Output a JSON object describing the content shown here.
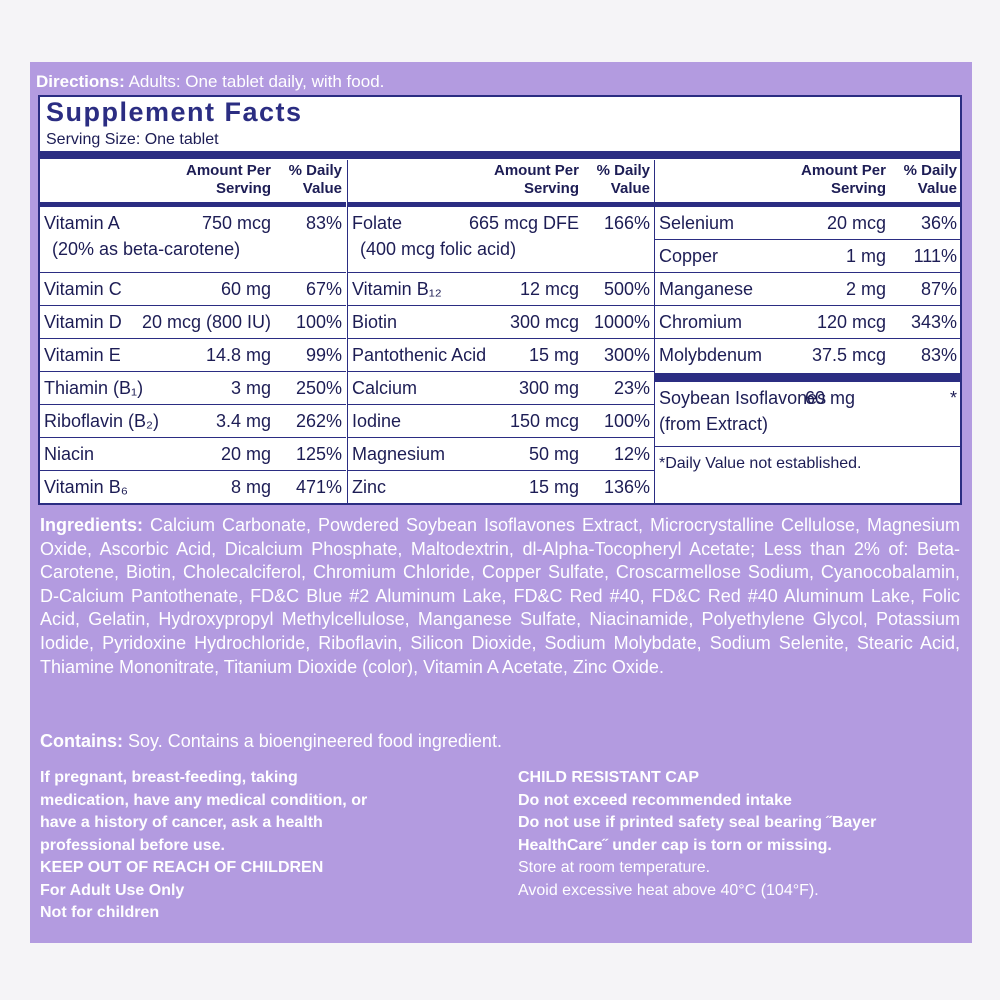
{
  "directions": {
    "label": "Directions:",
    "text": "Adults: One tablet daily, with food."
  },
  "facts": {
    "title": "Supplement Facts",
    "serving": "Serving Size: One tablet",
    "columns": [
      {
        "amount_header": "Amount Per Serving",
        "dv_header": "% Daily Value",
        "rows": [
          {
            "name": "Vitamin A",
            "amount": "750 mcg",
            "dv": "83%",
            "note": "(20% as beta-carotene)"
          },
          {
            "name": "Vitamin C",
            "amount": "60 mg",
            "dv": "67%"
          },
          {
            "name": "Vitamin D",
            "amount": "20 mcg (800 IU)",
            "dv": "100%"
          },
          {
            "name": "Vitamin E",
            "amount": "14.8 mg",
            "dv": "99%"
          },
          {
            "name": "Thiamin (B₁)",
            "amount": "3 mg",
            "dv": "250%"
          },
          {
            "name": "Riboflavin (B₂)",
            "amount": "3.4 mg",
            "dv": "262%"
          },
          {
            "name": "Niacin",
            "amount": "20 mg",
            "dv": "125%"
          },
          {
            "name": "Vitamin B₆",
            "amount": "8 mg",
            "dv": "471%"
          }
        ]
      },
      {
        "amount_header": "Amount Per Serving",
        "dv_header": "% Daily Value",
        "rows": [
          {
            "name": "Folate",
            "amount": "665 mcg DFE",
            "dv": "166%",
            "note": "(400 mcg folic acid)"
          },
          {
            "name": "Vitamin B₁₂",
            "amount": "12 mcg",
            "dv": "500%"
          },
          {
            "name": "Biotin",
            "amount": "300 mcg",
            "dv": "1000%"
          },
          {
            "name": "Pantothenic Acid",
            "amount": "15 mg",
            "dv": "300%"
          },
          {
            "name": "Calcium",
            "amount": "300 mg",
            "dv": "23%"
          },
          {
            "name": "Iodine",
            "amount": "150 mcg",
            "dv": "100%"
          },
          {
            "name": "Magnesium",
            "amount": "50 mg",
            "dv": "12%"
          },
          {
            "name": "Zinc",
            "amount": "15 mg",
            "dv": "136%"
          }
        ]
      },
      {
        "amount_header": "Amount Per Serving",
        "dv_header": "% Daily Value",
        "rows": [
          {
            "name": "Selenium",
            "amount": "20 mcg",
            "dv": "36%"
          },
          {
            "name": "Copper",
            "amount": "1 mg",
            "dv": "111%"
          },
          {
            "name": "Manganese",
            "amount": "2 mg",
            "dv": "87%"
          },
          {
            "name": "Chromium",
            "amount": "120 mcg",
            "dv": "343%"
          },
          {
            "name": "Molybdenum",
            "amount": "37.5 mcg",
            "dv": "83%"
          }
        ],
        "other": {
          "name": "Soybean Isoflavones",
          "amount": "60 mg",
          "dv": "*",
          "note": "(from Extract)"
        },
        "footnote": "*Daily Value not established."
      }
    ]
  },
  "ingredients": {
    "label": "Ingredients:",
    "text": "Calcium Carbonate, Powdered Soybean Isoflavones Extract, Microcrystalline Cellulose, Magnesium Oxide, Ascorbic Acid, Dicalcium Phosphate, Maltodextrin, dl-Alpha-Tocopheryl Acetate; Less than 2% of: Beta-Carotene, Biotin, Cholecalciferol, Chromium Chloride, Copper Sulfate, Croscarmellose Sodium, Cyanocobalamin, D-Calcium Pantothenate, FD&C Blue #2 Aluminum Lake, FD&C Red #40, FD&C Red #40 Aluminum Lake, Folic Acid, Gelatin, Hydroxypropyl Methylcellulose, Manganese Sulfate, Niacinamide, Polyethylene Glycol, Potassium Iodide, Pyridoxine Hydrochloride, Riboflavin, Silicon Dioxide, Sodium Molybdate, Sodium Selenite, Stearic Acid, Thiamine Mononitrate, Titanium Dioxide (color), Vitamin A Acetate, Zinc Oxide."
  },
  "contains": {
    "label": "Contains:",
    "text": "Soy.  Contains a bioengineered food ingredient."
  },
  "warnings_left": {
    "bold": [
      "If pregnant, breast-feeding, taking medication, have any medical condition, or have a history of cancer, ask a health professional before use.",
      "KEEP OUT OF REACH OF CHILDREN",
      "For Adult Use Only",
      "Not for children"
    ]
  },
  "warnings_right": {
    "bold": [
      "CHILD RESISTANT CAP",
      "Do not exceed recommended intake",
      "Do not use if printed safety seal bearing ˝Bayer HealthCare˝ under cap is torn or missing."
    ],
    "normal": [
      "Store at room temperature.",
      "Avoid excessive heat above 40°C (104°F)."
    ]
  }
}
